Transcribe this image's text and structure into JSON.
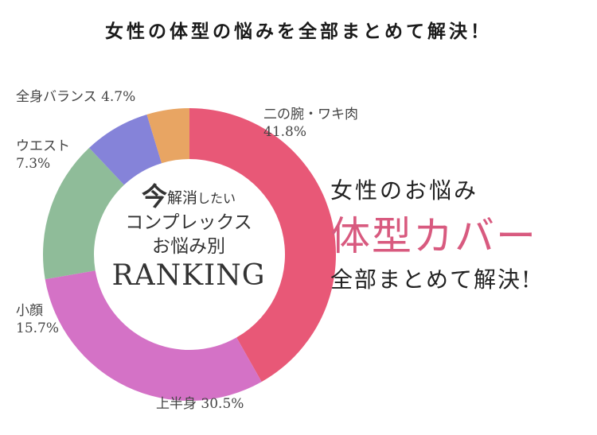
{
  "headline": "女性の体型の悩みを全部まとめて解決！",
  "chart_data": {
    "type": "pie",
    "categories": [
      "二の腕・ワキ肉",
      "上半身",
      "小顔",
      "ウエスト",
      "全身バランス"
    ],
    "values": [
      41.8,
      30.5,
      15.7,
      7.3,
      4.7
    ],
    "value_labels": [
      "41.8%",
      "30.5%",
      "15.7%",
      "7.3%",
      "4.7%"
    ],
    "colors": [
      "#e85877",
      "#d472c6",
      "#8fbc99",
      "#8583d9",
      "#e8a563"
    ],
    "style": "donut"
  },
  "center_text": {
    "big_char": "今",
    "line1_mid": "解消",
    "line1_small": "したい",
    "line2": "コンプレックス",
    "line3": "お悩み別",
    "line4": "RANKING"
  },
  "promo": {
    "line1": "女性のお悩み",
    "line2": "体型カバー",
    "line3": "全部まとめて解決!"
  }
}
